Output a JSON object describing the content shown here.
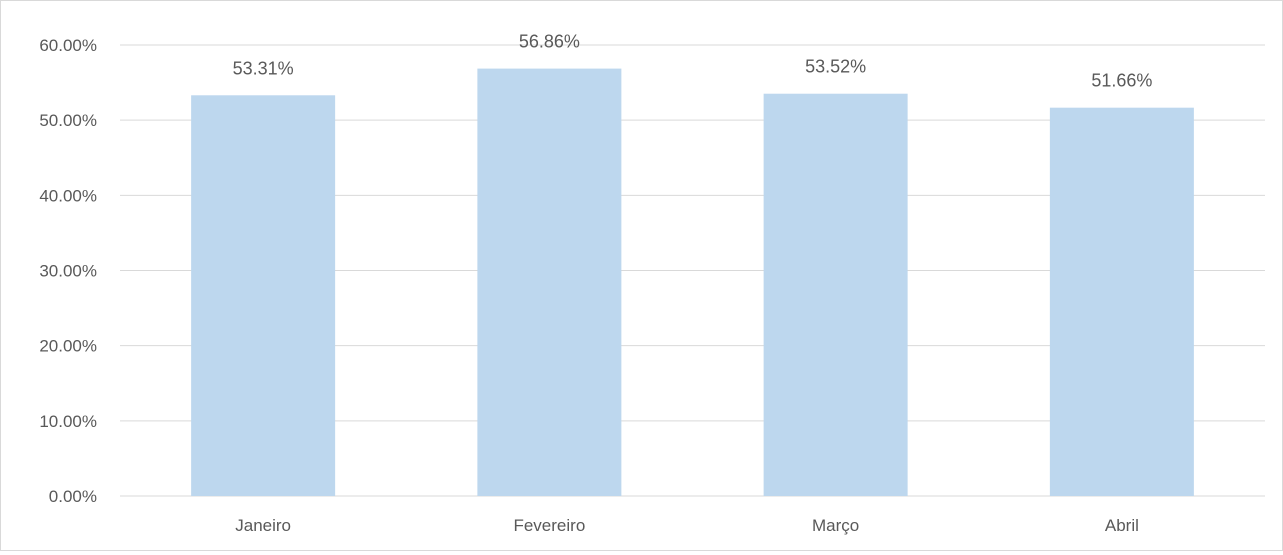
{
  "chart_data": {
    "type": "bar",
    "categories": [
      "Janeiro",
      "Fevereiro",
      "Março",
      "Abril"
    ],
    "values": [
      53.31,
      56.86,
      53.52,
      51.66
    ],
    "data_labels": [
      "53.31%",
      "56.86%",
      "53.52%",
      "51.66%"
    ],
    "y_ticks": [
      0,
      10,
      20,
      30,
      40,
      50,
      60
    ],
    "y_tick_labels": [
      "0.00%",
      "10.00%",
      "20.00%",
      "30.00%",
      "40.00%",
      "50.00%",
      "60.00%"
    ],
    "ylim": [
      0,
      60
    ],
    "grid": true,
    "legend": "none",
    "colors": {
      "bar": "#bdd7ee",
      "grid": "#d9d9d9",
      "text": "#595959",
      "frame": "#d9d9d9"
    }
  }
}
